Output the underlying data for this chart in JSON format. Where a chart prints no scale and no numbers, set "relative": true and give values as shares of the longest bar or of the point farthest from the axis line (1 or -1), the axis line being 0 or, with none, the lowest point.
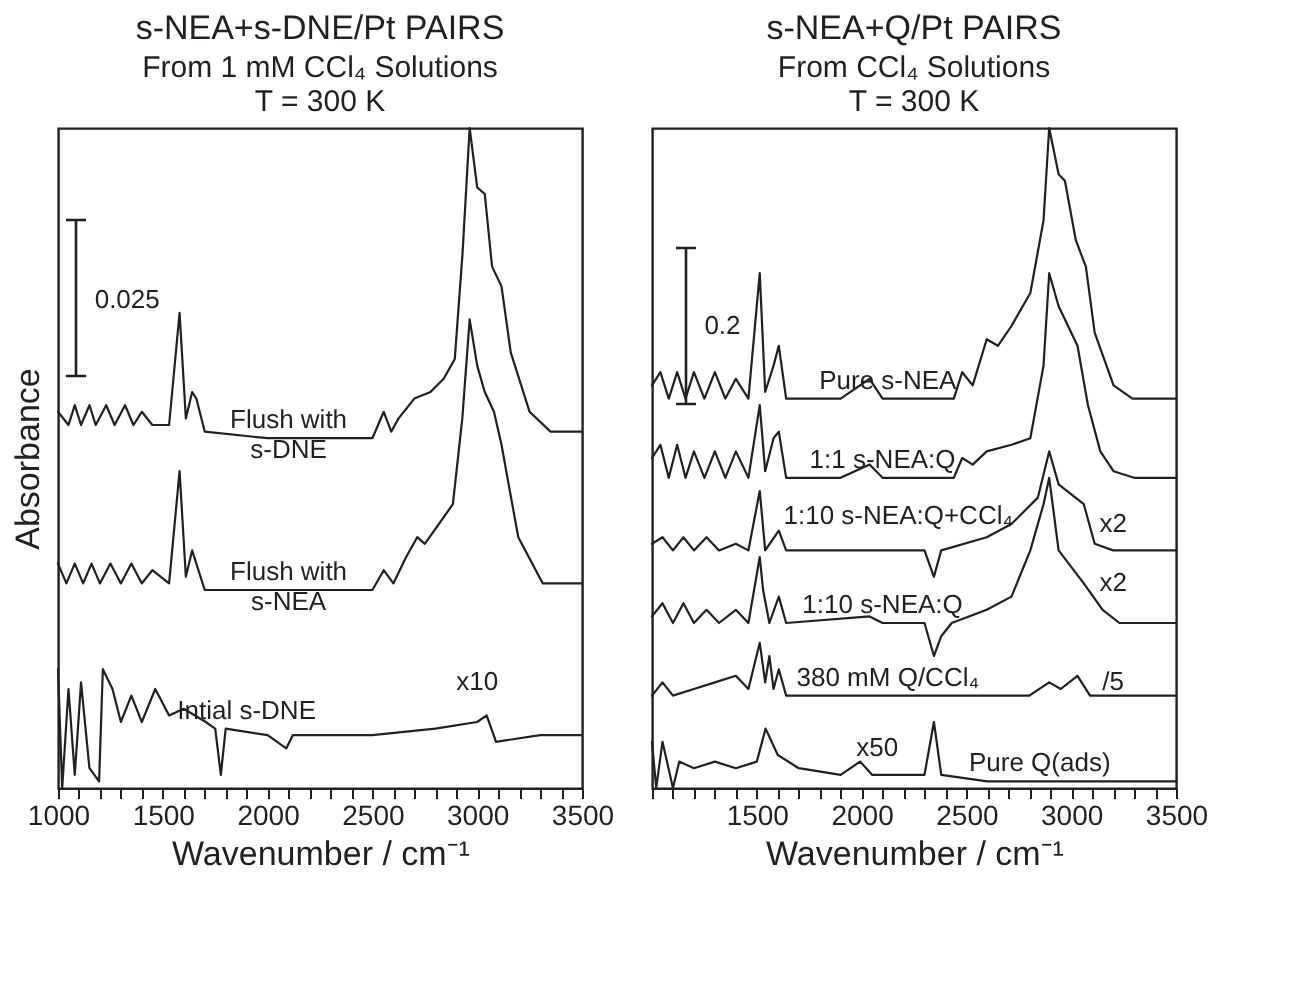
{
  "chart_data": [
    {
      "type": "line",
      "title": "s-NEA+s-DNE/Pt PAIRS",
      "subtitle": "From 1 mM CCl₄ Solutions\nT = 300 K",
      "xlabel": "Wavenumber / cm⁻¹",
      "ylabel": "Absorbance",
      "relative": true,
      "xlim": [
        1000,
        3500
      ],
      "xticks": [
        1000,
        {
          "value": 1100,
          "label": null
        },
        {
          "value": 1200,
          "label": null
        },
        {
          "value": 1300,
          "label": null
        },
        {
          "value": 1400,
          "label": null
        },
        1500,
        {
          "value": 1600,
          "label": null
        },
        {
          "value": 1700,
          "label": null
        },
        {
          "value": 1800,
          "label": null
        },
        {
          "value": 1900,
          "label": null
        },
        2000,
        {
          "value": 2100,
          "label": null
        },
        {
          "value": 2200,
          "label": null
        },
        {
          "value": 2300,
          "label": null
        },
        {
          "value": 2400,
          "label": null
        },
        2500,
        {
          "value": 2600,
          "label": null
        },
        {
          "value": 2700,
          "label": null
        },
        {
          "value": 2800,
          "label": null
        },
        {
          "value": 2900,
          "label": null
        },
        3000,
        {
          "value": 3100,
          "label": null
        },
        {
          "value": 3200,
          "label": null
        },
        {
          "value": 3300,
          "label": null
        },
        {
          "value": 3400,
          "label": null
        },
        3500
      ],
      "annotations": [
        "0.025",
        "x10"
      ],
      "series": [
        {
          "name": "Flush with s-DNE",
          "color": "#231f20",
          "x": [
            1000,
            1050,
            1080,
            1110,
            1150,
            1180,
            1230,
            1270,
            1320,
            1360,
            1400,
            1450,
            1530,
            1580,
            1610,
            1640,
            1660,
            1700,
            2000,
            2500,
            2554,
            2590,
            2625,
            2700,
            2777,
            2840,
            2893,
            2930,
            2964,
            3000,
            3036,
            3071,
            3116,
            3160,
            3250,
            3350,
            3500
          ],
          "values": [
            0.57,
            0.55,
            0.58,
            0.55,
            0.58,
            0.55,
            0.58,
            0.55,
            0.58,
            0.55,
            0.57,
            0.55,
            0.55,
            0.72,
            0.56,
            0.6,
            0.59,
            0.54,
            0.53,
            0.53,
            0.57,
            0.54,
            0.56,
            0.59,
            0.6,
            0.62,
            0.65,
            0.81,
            1.0,
            0.91,
            0.9,
            0.79,
            0.76,
            0.66,
            0.57,
            0.54,
            0.54
          ]
        },
        {
          "name": "Flush with s-NEA",
          "color": "#231f20",
          "x": [
            1000,
            1040,
            1080,
            1120,
            1160,
            1200,
            1250,
            1300,
            1350,
            1400,
            1450,
            1530,
            1580,
            1610,
            1640,
            1660,
            1700,
            2000,
            2500,
            2554,
            2600,
            2661,
            2714,
            2750,
            2884,
            2929,
            2964,
            3000,
            3036,
            3080,
            3116,
            3150,
            3196,
            3313,
            3500
          ],
          "values": [
            0.34,
            0.31,
            0.34,
            0.31,
            0.34,
            0.31,
            0.34,
            0.31,
            0.34,
            0.31,
            0.33,
            0.31,
            0.48,
            0.32,
            0.36,
            0.34,
            0.3,
            0.3,
            0.3,
            0.33,
            0.31,
            0.35,
            0.38,
            0.37,
            0.43,
            0.56,
            0.71,
            0.64,
            0.6,
            0.57,
            0.52,
            0.46,
            0.38,
            0.31,
            0.31
          ]
        },
        {
          "name": "Intial s-DNE",
          "color": "#231f20",
          "x": [
            1000,
            1020,
            1050,
            1080,
            1110,
            1150,
            1196,
            1214,
            1260,
            1300,
            1350,
            1400,
            1464,
            1530,
            1600,
            1705,
            1750,
            1777,
            1800,
            2000,
            2089,
            2120,
            2500,
            2800,
            3000,
            3045,
            3090,
            3300,
            3500
          ],
          "values": [
            0.18,
            0.0,
            0.15,
            0.02,
            0.16,
            0.03,
            0.01,
            0.18,
            0.15,
            0.1,
            0.14,
            0.1,
            0.15,
            0.11,
            0.12,
            0.1,
            0.09,
            0.02,
            0.09,
            0.08,
            0.06,
            0.08,
            0.08,
            0.09,
            0.1,
            0.11,
            0.07,
            0.08,
            0.08
          ]
        }
      ]
    },
    {
      "type": "line",
      "title": "s-NEA+Q/Pt PAIRS",
      "subtitle": "From CCl₄ Solutions\nT = 300 K",
      "xlabel": "Wavenumber / cm⁻¹",
      "relative": true,
      "xlim": [
        1000,
        3500
      ],
      "xticks": [
        {
          "value": 1000,
          "label": null
        },
        {
          "value": 1100,
          "label": null
        },
        {
          "value": 1200,
          "label": null
        },
        {
          "value": 1300,
          "label": null
        },
        {
          "value": 1400,
          "label": null
        },
        1500,
        {
          "value": 1600,
          "label": null
        },
        {
          "value": 1700,
          "label": null
        },
        {
          "value": 1800,
          "label": null
        },
        {
          "value": 1900,
          "label": null
        },
        2000,
        {
          "value": 2100,
          "label": null
        },
        {
          "value": 2200,
          "label": null
        },
        {
          "value": 2300,
          "label": null
        },
        {
          "value": 2400,
          "label": null
        },
        2500,
        {
          "value": 2600,
          "label": null
        },
        {
          "value": 2700,
          "label": null
        },
        {
          "value": 2800,
          "label": null
        },
        {
          "value": 2900,
          "label": null
        },
        3000,
        {
          "value": 3100,
          "label": null
        },
        {
          "value": 3200,
          "label": null
        },
        {
          "value": 3300,
          "label": null
        },
        {
          "value": 3400,
          "label": null
        },
        3500
      ],
      "annotations": [
        "0.2",
        "x2",
        "x2",
        "/5",
        "x50"
      ],
      "series": [
        {
          "name": "Pure s-NEA",
          "color": "#231f20",
          "x": [
            1000,
            1040,
            1080,
            1120,
            1160,
            1200,
            1250,
            1300,
            1350,
            1400,
            1460,
            1514,
            1540,
            1580,
            1605,
            1640,
            1900,
            2038,
            2100,
            2440,
            2480,
            2530,
            2597,
            2650,
            2715,
            2805,
            2868,
            2895,
            2940,
            2970,
            3022,
            3070,
            3112,
            3202,
            3292,
            3500
          ],
          "values": [
            0.61,
            0.63,
            0.59,
            0.63,
            0.59,
            0.63,
            0.59,
            0.63,
            0.59,
            0.62,
            0.59,
            0.78,
            0.6,
            0.64,
            0.67,
            0.59,
            0.59,
            0.62,
            0.59,
            0.59,
            0.63,
            0.61,
            0.68,
            0.67,
            0.7,
            0.75,
            0.86,
            1.0,
            0.93,
            0.92,
            0.83,
            0.79,
            0.69,
            0.61,
            0.59,
            0.59
          ]
        },
        {
          "name": "1:1 s-NEA:Q",
          "color": "#231f20",
          "x": [
            1000,
            1040,
            1080,
            1120,
            1160,
            1200,
            1250,
            1300,
            1350,
            1400,
            1460,
            1514,
            1540,
            1580,
            1605,
            1640,
            1900,
            2038,
            2100,
            2440,
            2480,
            2530,
            2597,
            2715,
            2805,
            2868,
            2895,
            2940,
            3030,
            3080,
            3139,
            3202,
            3300,
            3500
          ],
          "values": [
            0.5,
            0.52,
            0.47,
            0.52,
            0.47,
            0.51,
            0.47,
            0.51,
            0.47,
            0.51,
            0.47,
            0.58,
            0.48,
            0.53,
            0.54,
            0.47,
            0.47,
            0.49,
            0.47,
            0.47,
            0.5,
            0.49,
            0.51,
            0.52,
            0.53,
            0.64,
            0.78,
            0.73,
            0.67,
            0.58,
            0.51,
            0.48,
            0.47,
            0.47
          ]
        },
        {
          "name": "1:10 s-NEA:Q+CCl₄",
          "color": "#231f20",
          "x": [
            1000,
            1050,
            1100,
            1150,
            1200,
            1260,
            1320,
            1400,
            1460,
            1514,
            1540,
            1605,
            1640,
            2300,
            2345,
            2380,
            2597,
            2715,
            2841,
            2895,
            2940,
            3060,
            3112,
            3200,
            3500
          ],
          "values": [
            0.37,
            0.38,
            0.36,
            0.38,
            0.36,
            0.38,
            0.36,
            0.37,
            0.36,
            0.45,
            0.36,
            0.39,
            0.36,
            0.36,
            0.32,
            0.36,
            0.38,
            0.4,
            0.44,
            0.51,
            0.46,
            0.43,
            0.37,
            0.36,
            0.36
          ]
        },
        {
          "name": "1:10 s-NEA:Q",
          "color": "#231f20",
          "x": [
            1000,
            1050,
            1100,
            1150,
            1200,
            1260,
            1320,
            1400,
            1460,
            1514,
            1530,
            1560,
            1605,
            1640,
            2038,
            2100,
            2300,
            2345,
            2380,
            2430,
            2597,
            2715,
            2805,
            2868,
            2895,
            2940,
            3060,
            3150,
            3230,
            3500
          ],
          "values": [
            0.26,
            0.28,
            0.25,
            0.28,
            0.25,
            0.27,
            0.25,
            0.27,
            0.25,
            0.35,
            0.3,
            0.25,
            0.29,
            0.25,
            0.26,
            0.25,
            0.25,
            0.2,
            0.23,
            0.25,
            0.27,
            0.29,
            0.36,
            0.43,
            0.47,
            0.36,
            0.31,
            0.27,
            0.25,
            0.25
          ]
        },
        {
          "name": "380 mM Q/CCl₄",
          "color": "#231f20",
          "x": [
            1000,
            1050,
            1100,
            1200,
            1300,
            1400,
            1460,
            1514,
            1540,
            1560,
            1580,
            1605,
            1640,
            2800,
            2895,
            2950,
            3030,
            3090,
            3200,
            3500
          ],
          "values": [
            0.14,
            0.16,
            0.14,
            0.15,
            0.16,
            0.17,
            0.15,
            0.22,
            0.16,
            0.2,
            0.15,
            0.18,
            0.14,
            0.14,
            0.16,
            0.15,
            0.17,
            0.14,
            0.14,
            0.14
          ]
        },
        {
          "name": "Pure Q(ads)",
          "color": "#231f20",
          "x": [
            1000,
            1020,
            1050,
            1100,
            1130,
            1200,
            1300,
            1400,
            1500,
            1542,
            1600,
            1700,
            1900,
            1993,
            2050,
            2300,
            2345,
            2380,
            2600,
            3500
          ],
          "values": [
            0.07,
            0.0,
            0.07,
            0.0,
            0.04,
            0.03,
            0.04,
            0.03,
            0.04,
            0.09,
            0.05,
            0.03,
            0.02,
            0.04,
            0.02,
            0.02,
            0.1,
            0.02,
            0.01,
            0.01
          ]
        }
      ]
    }
  ]
}
